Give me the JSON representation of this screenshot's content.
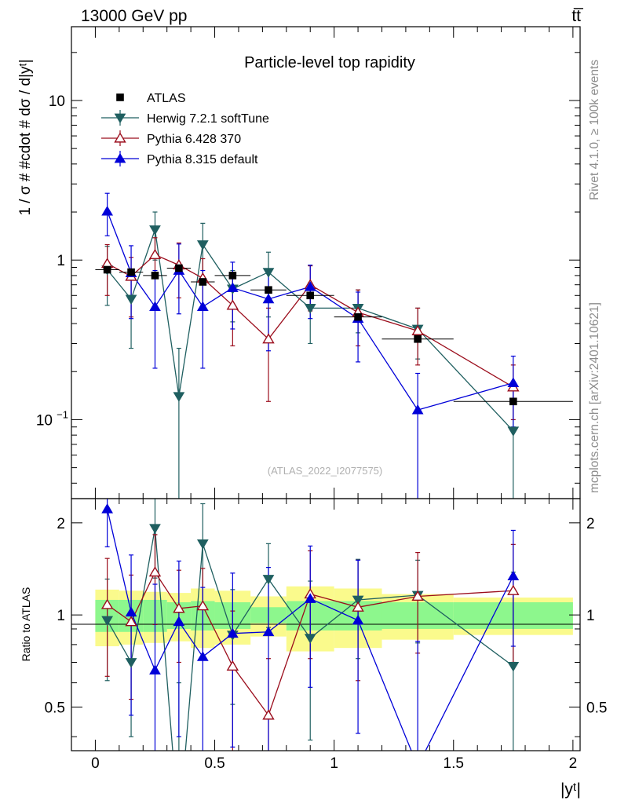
{
  "header": {
    "energy_label": "13000 GeV pp",
    "process_label": "tt̅"
  },
  "side_labels": {
    "rivet": "Rivet 4.1.0, ≥ 100k events",
    "source": "mcplots.cern.ch [arXiv:2401.10621]"
  },
  "chart_data": {
    "type": "line",
    "title": "Particle-level top rapidity",
    "analysis_id": "(ATLAS_2022_I2077575)",
    "xlabel": "|yᵗ|",
    "ylabel": "1 / σ # #cdot # dσ / d|yᵗ|",
    "ratio_ylabel": "Ratio to ATLAS",
    "xlim": [
      -0.1,
      2.03
    ],
    "ylim": [
      0.032,
      29
    ],
    "ratio_ylim": [
      0.36,
      2.4
    ],
    "y_scale": "log",
    "x_ticks": [
      0,
      0.5,
      1,
      1.5,
      2
    ],
    "x_tick_labels": [
      "0",
      "0.5",
      "1",
      "1.5",
      "2"
    ],
    "y_tick_labels": [
      {
        "value": 10,
        "base": "10",
        "exp": ""
      },
      {
        "value": 1,
        "base": "1",
        "exp": ""
      },
      {
        "value": 0.1,
        "base": "10",
        "exp": "−1"
      }
    ],
    "ratio_y_ticks": [
      0.5,
      1,
      2
    ],
    "ratio_y_tick_labels": [
      "0.5",
      "1",
      "2"
    ],
    "bins": [
      {
        "x": 0.05,
        "lo": 0.0,
        "hi": 0.1
      },
      {
        "x": 0.15,
        "lo": 0.1,
        "hi": 0.2
      },
      {
        "x": 0.25,
        "lo": 0.2,
        "hi": 0.3
      },
      {
        "x": 0.35,
        "lo": 0.3,
        "hi": 0.4
      },
      {
        "x": 0.45,
        "lo": 0.4,
        "hi": 0.5
      },
      {
        "x": 0.575,
        "lo": 0.5,
        "hi": 0.65
      },
      {
        "x": 0.725,
        "lo": 0.65,
        "hi": 0.8
      },
      {
        "x": 0.9,
        "lo": 0.8,
        "hi": 1.0
      },
      {
        "x": 1.1,
        "lo": 1.0,
        "hi": 1.2
      },
      {
        "x": 1.35,
        "lo": 1.2,
        "hi": 1.5
      },
      {
        "x": 1.75,
        "lo": 1.5,
        "hi": 2.0
      }
    ],
    "data": {
      "name": "ATLAS",
      "values": [
        0.87,
        0.84,
        0.8,
        0.89,
        0.73,
        0.8,
        0.65,
        0.6,
        0.44,
        0.32,
        0.13
      ],
      "band_inner": [
        0.12,
        0.12,
        0.12,
        0.1,
        0.11,
        0.1,
        0.06,
        0.11,
        0.11,
        0.1,
        0.1
      ],
      "band_outer": [
        0.21,
        0.2,
        0.19,
        0.18,
        0.22,
        0.2,
        0.15,
        0.24,
        0.22,
        0.17,
        0.14
      ]
    },
    "series": [
      {
        "name": "Herwig 7.2.1 softTune",
        "color": "#1f5f60",
        "marker": "triangle-down-filled",
        "x": [
          0.05,
          0.15,
          0.25,
          0.35,
          0.45,
          0.575,
          0.725,
          0.9,
          1.1,
          1.35,
          1.75
        ],
        "values": [
          0.87,
          0.57,
          1.55,
          0.14,
          1.25,
          0.66,
          0.84,
          0.5,
          0.5,
          0.37,
          0.085
        ],
        "err_up": [
          0.35,
          0.25,
          0.45,
          0.14,
          0.45,
          0.2,
          0.28,
          0.22,
          0.15,
          0.13,
          0.07
        ],
        "err_down": [
          0.35,
          0.29,
          0.55,
          0.14,
          0.5,
          0.25,
          0.4,
          0.2,
          0.15,
          0.13,
          0.06
        ],
        "ratio": [
          0.96,
          0.7,
          1.92,
          0.2,
          1.71,
          0.86,
          1.31,
          0.84,
          1.12,
          1.16,
          0.68
        ],
        "ratio_err_up": [
          0.35,
          0.3,
          0.55,
          0.4,
          0.6,
          0.35,
          0.4,
          0.45,
          0.4,
          0.35,
          0.7
        ],
        "ratio_err_down": [
          0.35,
          0.3,
          0.6,
          0.4,
          0.65,
          0.35,
          0.4,
          0.45,
          0.4,
          0.35,
          0.5
        ]
      },
      {
        "name": "Pythia 6.428 370",
        "color": "#9b0d1c",
        "marker": "triangle-up-open",
        "x": [
          0.05,
          0.15,
          0.25,
          0.35,
          0.45,
          0.575,
          0.725,
          0.9,
          1.1,
          1.35,
          1.75
        ],
        "values": [
          0.95,
          0.79,
          1.08,
          0.93,
          0.77,
          0.52,
          0.32,
          0.7,
          0.47,
          0.36,
          0.16
        ],
        "err_up": [
          0.3,
          0.25,
          0.3,
          0.35,
          0.25,
          0.25,
          0.18,
          0.22,
          0.18,
          0.14,
          0.06
        ],
        "err_down": [
          0.35,
          0.35,
          0.3,
          0.35,
          0.25,
          0.23,
          0.19,
          0.22,
          0.18,
          0.14,
          0.06
        ],
        "ratio": [
          1.08,
          0.95,
          1.38,
          1.05,
          1.07,
          0.68,
          0.47,
          1.17,
          1.06,
          1.15,
          1.2
        ],
        "ratio_err_up": [
          0.45,
          0.4,
          0.45,
          0.35,
          0.35,
          0.35,
          0.25,
          0.45,
          0.45,
          0.45,
          0.5
        ],
        "ratio_err_down": [
          0.45,
          0.42,
          0.45,
          0.35,
          0.35,
          0.4,
          0.25,
          0.45,
          0.45,
          0.4,
          0.5
        ]
      },
      {
        "name": "Pythia 8.315 default",
        "color": "#0000d8",
        "marker": "triangle-up-filled",
        "x": [
          0.05,
          0.15,
          0.25,
          0.35,
          0.45,
          0.575,
          0.725,
          0.9,
          1.1,
          1.35,
          1.75
        ],
        "values": [
          2.02,
          0.83,
          0.51,
          0.86,
          0.51,
          0.67,
          0.57,
          0.68,
          0.43,
          0.115,
          0.17
        ],
        "err_up": [
          0.6,
          0.4,
          0.35,
          0.4,
          0.35,
          0.3,
          0.3,
          0.25,
          0.2,
          0.08,
          0.08
        ],
        "err_down": [
          0.6,
          0.4,
          0.3,
          0.4,
          0.3,
          0.3,
          0.3,
          0.25,
          0.2,
          0.085,
          0.08
        ],
        "ratio": [
          2.22,
          1.02,
          0.66,
          0.95,
          0.73,
          0.87,
          0.88,
          1.13,
          0.96,
          0.32,
          1.34
        ],
        "ratio_err_up": [
          0.55,
          0.55,
          0.6,
          0.55,
          0.5,
          0.5,
          0.55,
          0.55,
          0.55,
          0.5,
          0.55
        ],
        "ratio_err_down": [
          0.55,
          0.55,
          0.6,
          0.55,
          0.5,
          0.5,
          0.55,
          0.55,
          0.55,
          0.5,
          0.55
        ]
      }
    ],
    "legend": {
      "placement": "top-left",
      "entries": [
        {
          "label": "ATLAS",
          "marker": "square-filled",
          "color": "#000000"
        },
        {
          "label": "Herwig 7.2.1 softTune",
          "marker": "triangle-down-filled",
          "color": "#1f5f60"
        },
        {
          "label": "Pythia 6.428 370",
          "marker": "triangle-up-open",
          "color": "#9b0d1c"
        },
        {
          "label": "Pythia 8.315 default",
          "marker": "triangle-up-filled",
          "color": "#0000d8"
        }
      ]
    },
    "band_colors": {
      "inner": "#8df78d",
      "outer": "#fafa8c"
    }
  }
}
